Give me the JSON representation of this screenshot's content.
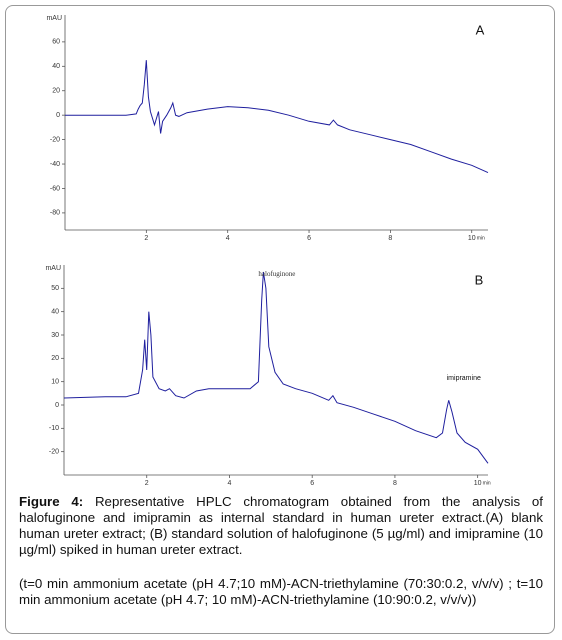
{
  "chart_data": [
    {
      "type": "line",
      "panel_label": "A",
      "ylabel": "mAU",
      "xlabel": "min",
      "color": "#1f1f9e",
      "xlim": [
        0,
        10.4
      ],
      "ylim": [
        -94,
        82
      ],
      "xticks": [
        2,
        4,
        6,
        8,
        10
      ],
      "yticks": [
        60,
        40,
        20,
        0,
        -20,
        -40,
        -60,
        -80
      ],
      "x": [
        0,
        1.5,
        1.75,
        1.8,
        1.85,
        1.9,
        1.95,
        2.0,
        2.05,
        2.1,
        2.2,
        2.3,
        2.35,
        2.4,
        2.5,
        2.6,
        2.65,
        2.72,
        2.8,
        3.0,
        3.5,
        4.0,
        4.5,
        5.0,
        5.5,
        6.0,
        6.5,
        6.6,
        6.7,
        7.0,
        7.5,
        8.0,
        8.5,
        9.0,
        9.5,
        10.0,
        10.4
      ],
      "values": [
        0,
        0,
        1,
        5,
        8,
        10,
        25,
        45,
        15,
        3,
        -8,
        3,
        -15,
        -5,
        0,
        6,
        10,
        0,
        -1,
        2,
        5,
        7,
        6,
        4,
        0,
        -5,
        -8,
        -4,
        -8,
        -12,
        -16,
        -20,
        -24,
        -30,
        -36,
        -41,
        -47
      ],
      "annotations": []
    },
    {
      "type": "line",
      "panel_label": "B",
      "ylabel": "mAU",
      "xlabel": "min",
      "color": "#1f1f9e",
      "xlim": [
        0,
        10.25
      ],
      "ylim": [
        -30,
        60
      ],
      "xticks": [
        2,
        4,
        6,
        8,
        10
      ],
      "yticks": [
        50,
        40,
        30,
        20,
        10,
        0,
        -10,
        -20
      ],
      "x": [
        0,
        1.0,
        1.5,
        1.8,
        1.9,
        1.95,
        2.0,
        2.05,
        2.1,
        2.15,
        2.3,
        2.45,
        2.55,
        2.7,
        2.9,
        3.2,
        3.5,
        4.0,
        4.5,
        4.7,
        4.78,
        4.82,
        4.88,
        4.95,
        5.1,
        5.3,
        5.6,
        6.0,
        6.4,
        6.5,
        6.6,
        7.0,
        7.5,
        8.0,
        8.5,
        9.0,
        9.15,
        9.25,
        9.3,
        9.38,
        9.5,
        9.7,
        10.0,
        10.25
      ],
      "values": [
        3,
        3.5,
        3.5,
        5,
        15,
        28,
        15,
        40,
        30,
        12,
        7,
        6,
        7,
        4,
        3,
        6,
        7,
        7,
        7,
        10,
        45,
        57,
        50,
        25,
        14,
        9,
        7,
        5,
        2,
        4,
        1,
        -1,
        -4,
        -7,
        -11,
        -14,
        -12,
        -2,
        2,
        -3,
        -12,
        -16,
        -19,
        -25
      ],
      "annotations": [
        {
          "text": "halofuginone",
          "x": 4.7,
          "y": 56
        },
        {
          "text": "imipramine",
          "x": 9.25,
          "y": 11.5
        }
      ]
    }
  ],
  "caption": {
    "label": "Figure 4:",
    "text": " Representative HPLC chromatogram obtained from the analysis of halofuginone and imipramin as internal standard in human ureter extract.(A) blank human ureter extract; (B) standard solution of halofuginone (5 µg/ml) and imipramine (10 µg/ml) spiked in human ureter extract.",
    "conditions": "(t=0 min ammonium acetate (pH 4.7;10 mM)-ACN-triethylamine (70:30:0.2, v/v/v) ; t=10 min ammonium acetate (pH 4.7; 10 mM)-ACN-triethylamine (10:90:0.2, v/v/v))"
  }
}
